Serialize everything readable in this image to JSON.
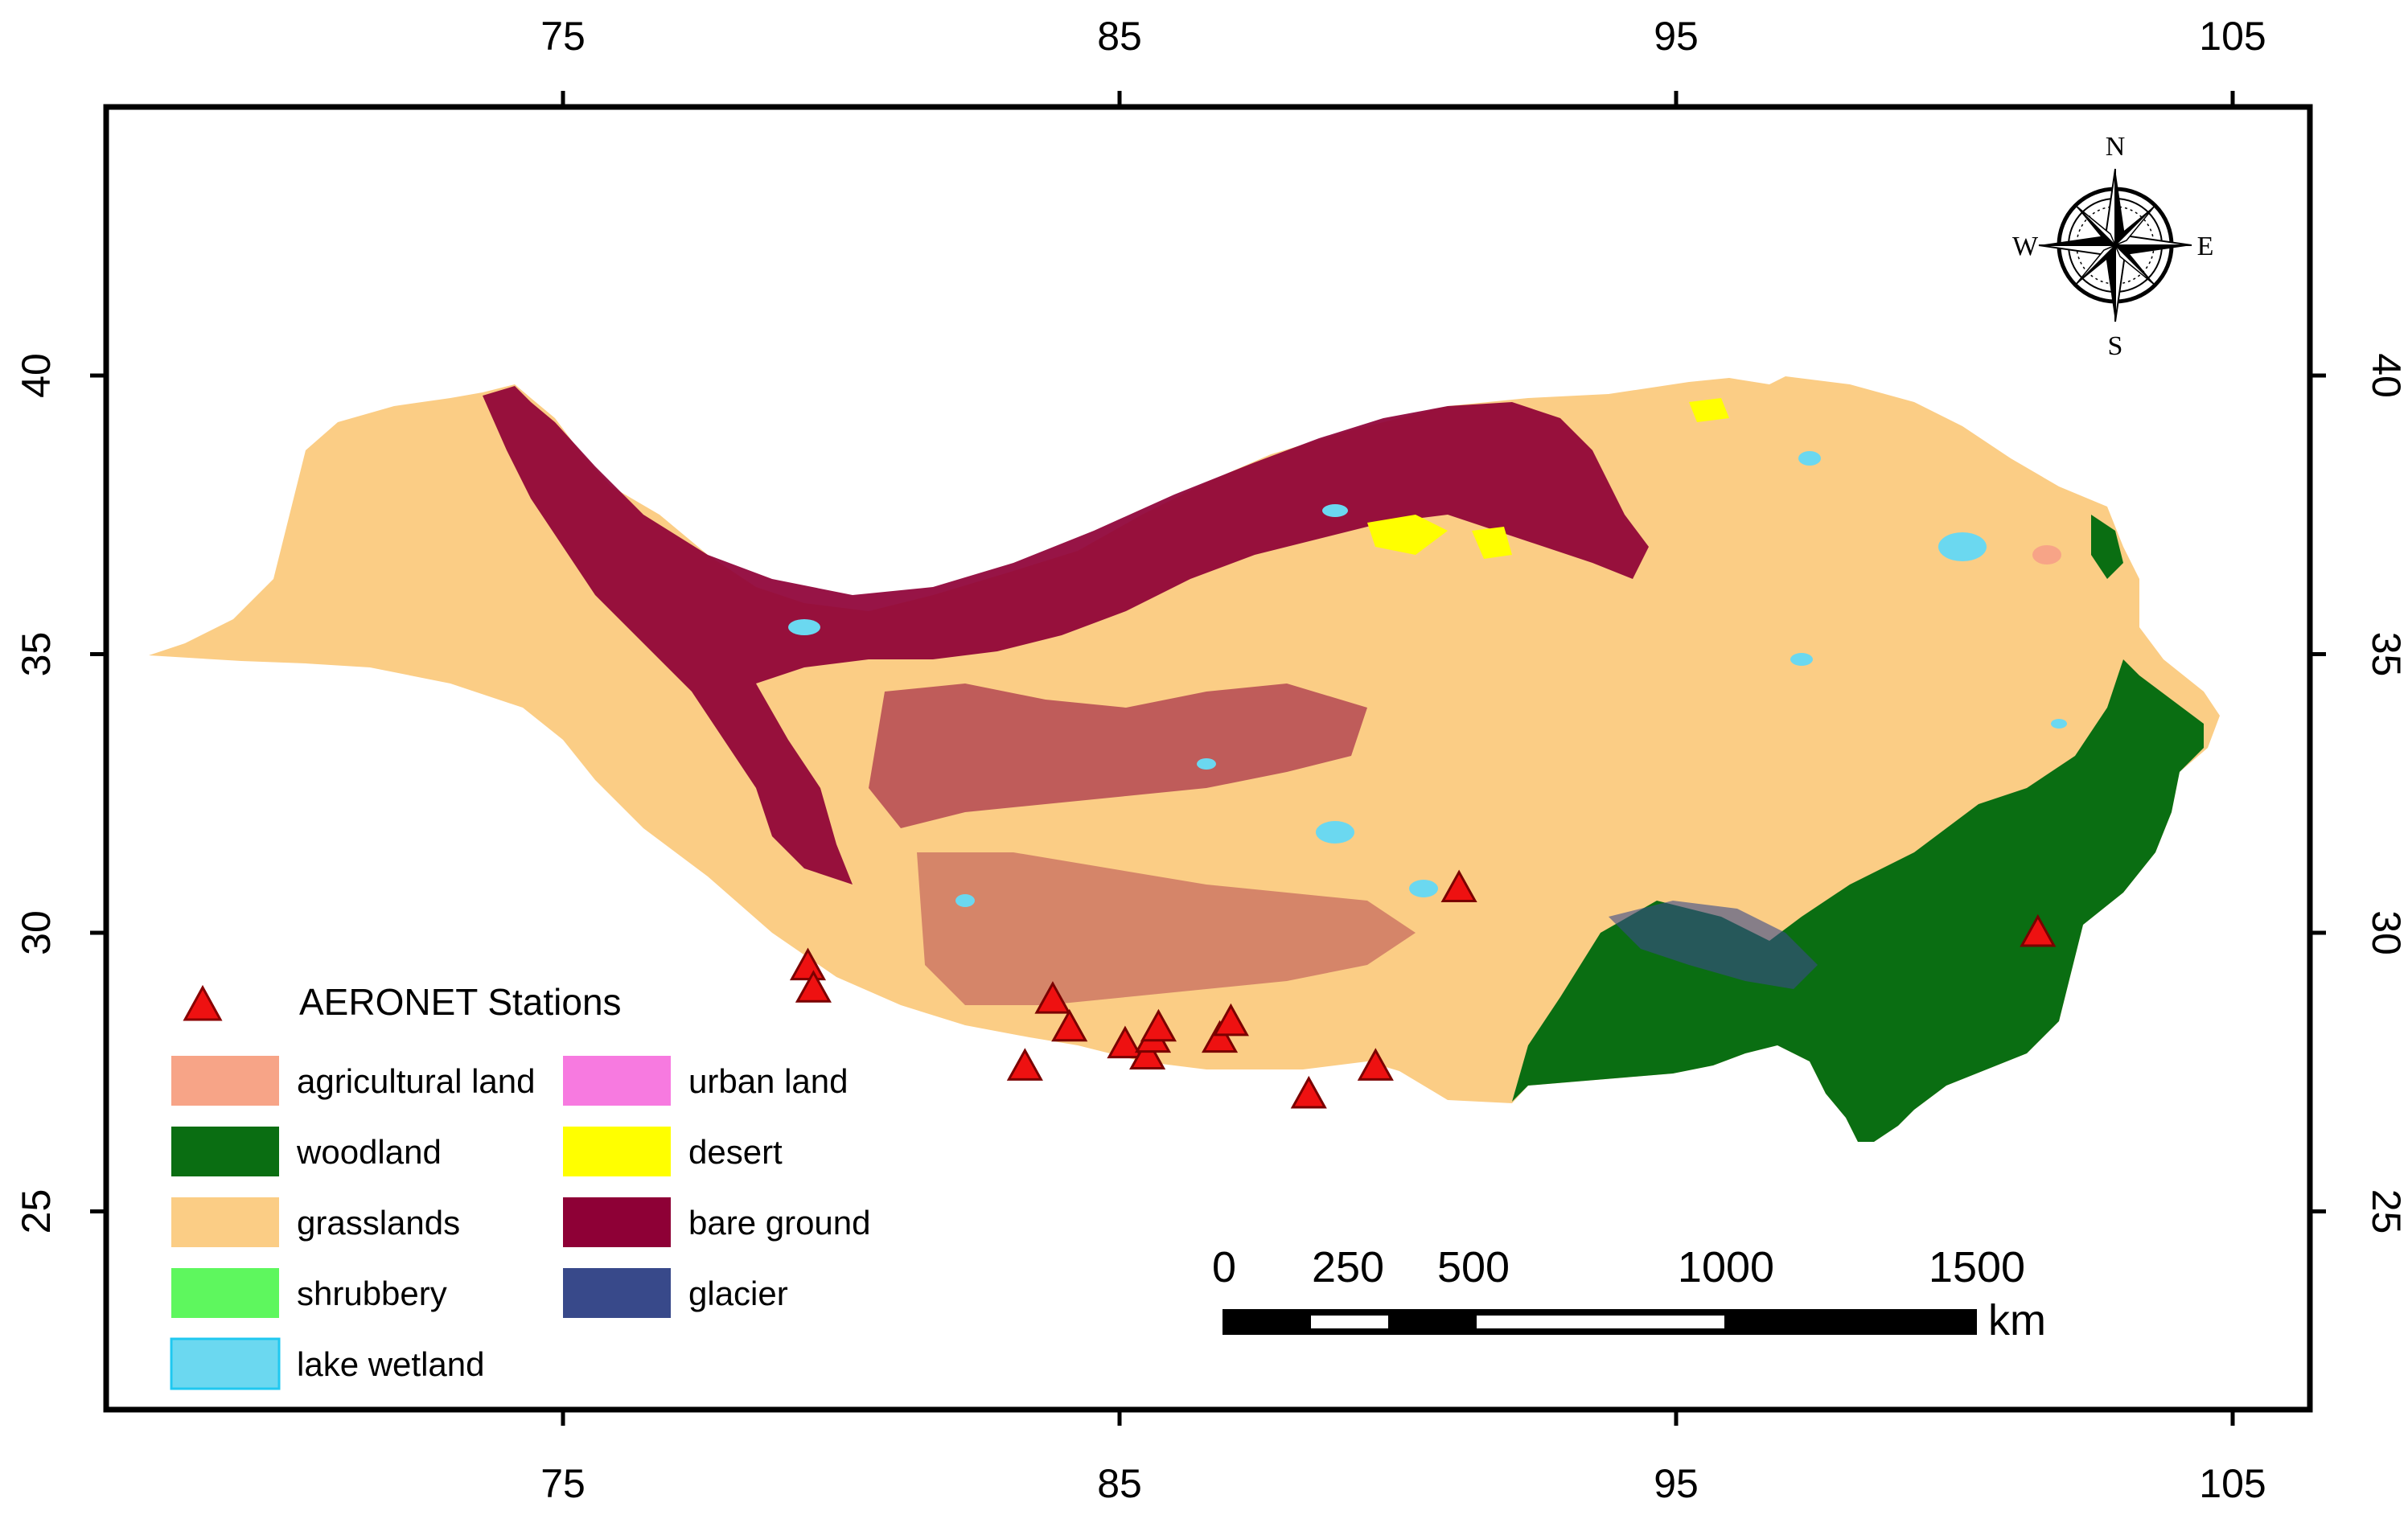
{
  "map": {
    "x_ticks": [
      "75",
      "85",
      "95",
      "105"
    ],
    "y_ticks": [
      "40",
      "35",
      "30",
      "25"
    ],
    "north_arrow": {
      "n": "N",
      "s": "S",
      "e": "E",
      "w": "W"
    },
    "scale_bar": {
      "labels": [
        "0",
        "250",
        "500",
        "1000",
        "1500"
      ],
      "unit": "km"
    },
    "legend": {
      "station_label": "AERONET Stations",
      "station_color": "#ee1111",
      "items": [
        {
          "label": "agricultural land",
          "color": "#f7a487"
        },
        {
          "label": "woodland",
          "color": "#0a6e12"
        },
        {
          "label": "grasslands",
          "color": "#fbcd85"
        },
        {
          "label": "shrubbery",
          "color": "#5ef75e"
        },
        {
          "label": "lake wetland",
          "color": "#6bd8f0"
        },
        {
          "label": "urban land",
          "color": "#f77ae0"
        },
        {
          "label": "desert",
          "color": "#ffff00"
        },
        {
          "label": "bare ground",
          "color": "#8e0036"
        },
        {
          "label": "glacier",
          "color": "#38498a"
        }
      ]
    },
    "stations": [
      {
        "lon": 79.4,
        "lat": 29.4
      },
      {
        "lon": 79.5,
        "lat": 29.0
      },
      {
        "lon": 83.3,
        "lat": 27.6
      },
      {
        "lon": 83.8,
        "lat": 28.8
      },
      {
        "lon": 84.1,
        "lat": 28.3
      },
      {
        "lon": 85.1,
        "lat": 28.0
      },
      {
        "lon": 85.5,
        "lat": 27.8
      },
      {
        "lon": 85.6,
        "lat": 28.1
      },
      {
        "lon": 85.7,
        "lat": 28.3
      },
      {
        "lon": 86.8,
        "lat": 28.1
      },
      {
        "lon": 87.0,
        "lat": 28.4
      },
      {
        "lon": 88.4,
        "lat": 27.1
      },
      {
        "lon": 89.6,
        "lat": 27.6
      },
      {
        "lon": 91.1,
        "lat": 30.8
      },
      {
        "lon": 101.5,
        "lat": 30.0
      }
    ]
  }
}
